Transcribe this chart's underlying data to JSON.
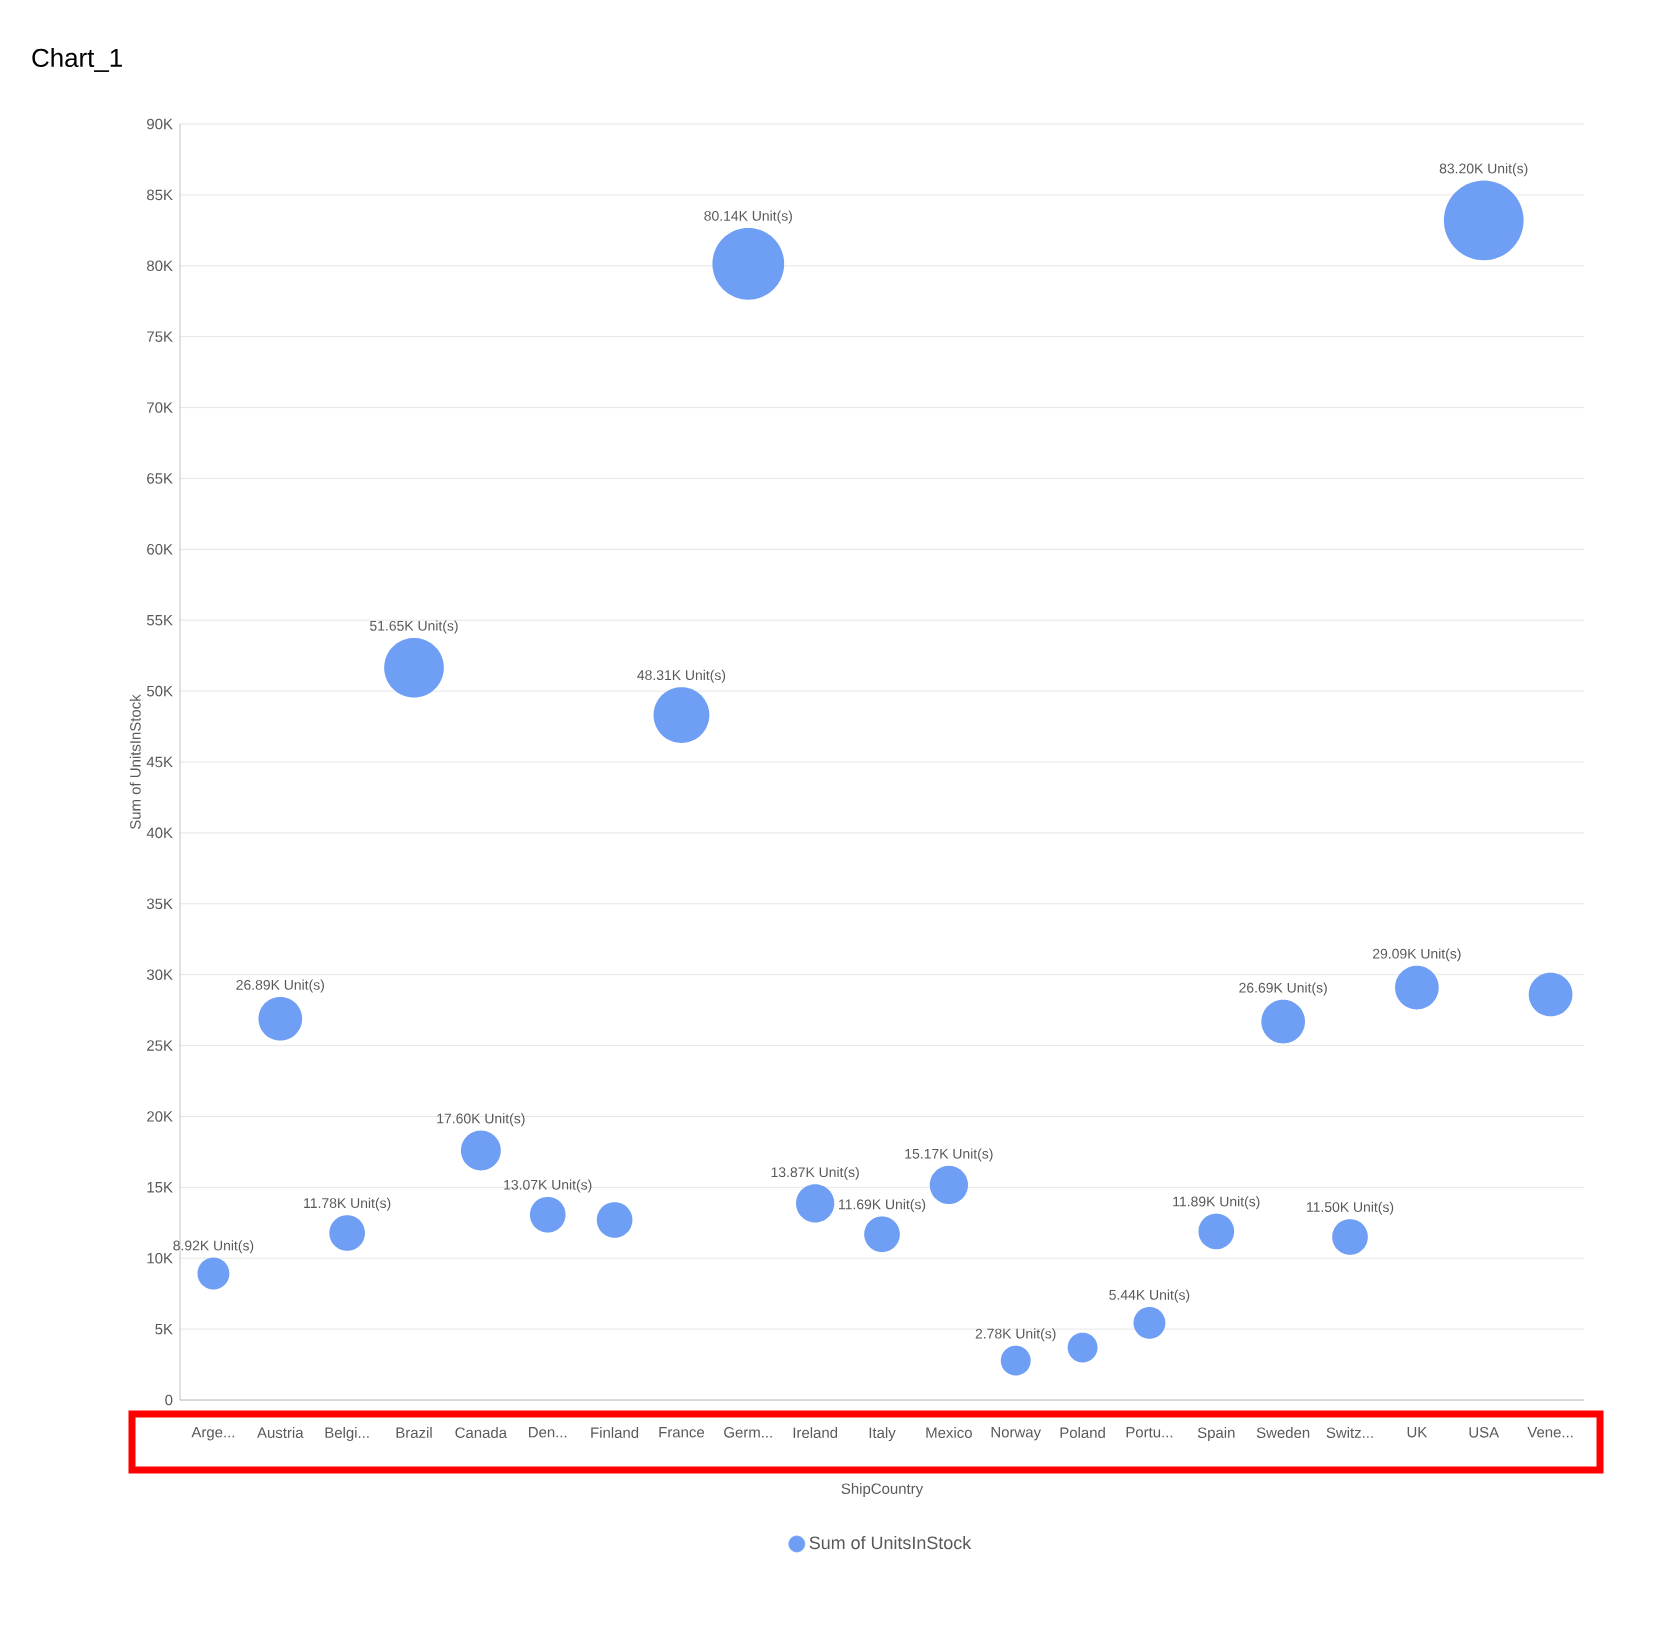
{
  "chart_data": {
    "type": "bubble",
    "title": "Chart_1",
    "xlabel": "ShipCountry",
    "ylabel": "Sum of UnitsInStock",
    "categories": [
      "Arge...",
      "Austria",
      "Belgi...",
      "Brazil",
      "Canada",
      "Den...",
      "Finland",
      "France",
      "Germ...",
      "Ireland",
      "Italy",
      "Mexico",
      "Norway",
      "Poland",
      "Portu...",
      "Spain",
      "Sweden",
      "Switz...",
      "UK",
      "USA",
      "Vene..."
    ],
    "series": [
      {
        "name": "Sum of UnitsInStock",
        "color": "#6f9ef5",
        "values": [
          8920,
          26890,
          11780,
          51650,
          17600,
          13070,
          12700,
          48310,
          80140,
          13870,
          11690,
          15170,
          2780,
          3700,
          5440,
          11890,
          26690,
          11500,
          29090,
          83200,
          28600
        ],
        "sizes": [
          0.16,
          0.3,
          0.2,
          0.56,
          0.25,
          0.2,
          0.2,
          0.49,
          0.81,
          0.23,
          0.2,
          0.23,
          0.14,
          0.14,
          0.16,
          0.2,
          0.3,
          0.2,
          0.3,
          1,
          0.3
        ],
        "value_labels": [
          "8.92K Unit(s)",
          "26.89K Unit(s)",
          "11.78K Unit(s)",
          "51.65K Unit(s)",
          "17.60K Unit(s)",
          "13.07K Unit(s)",
          null,
          "48.31K Unit(s)",
          "80.14K Unit(s)",
          "13.87K Unit(s)",
          "11.69K Unit(s)",
          "15.17K Unit(s)",
          "2.78K Unit(s)",
          null,
          "5.44K Unit(s)",
          "11.89K Unit(s)",
          "26.69K Unit(s)",
          "11.50K Unit(s)",
          "29.09K Unit(s)",
          "83.20K Unit(s)",
          null
        ]
      }
    ],
    "ylim": [
      0,
      90000
    ],
    "yticks": [
      0,
      {
        "value": 5000,
        "label": "5K"
      },
      {
        "value": 10000,
        "label": "10K"
      },
      {
        "value": 15000,
        "label": "15K"
      },
      {
        "value": 20000,
        "label": "20K"
      },
      {
        "value": 25000,
        "label": "25K"
      },
      {
        "value": 30000,
        "label": "30K"
      },
      {
        "value": 35000,
        "label": "35K"
      },
      {
        "value": 40000,
        "label": "40K"
      },
      {
        "value": 45000,
        "label": "45K"
      },
      {
        "value": 50000,
        "label": "50K"
      },
      {
        "value": 55000,
        "label": "55K"
      },
      {
        "value": 60000,
        "label": "60K"
      },
      {
        "value": 65000,
        "label": "65K"
      },
      {
        "value": 70000,
        "label": "70K"
      },
      {
        "value": 75000,
        "label": "75K"
      },
      {
        "value": 80000,
        "label": "80K"
      },
      {
        "value": 85000,
        "label": "85K"
      },
      {
        "value": 90000,
        "label": "90K"
      }
    ],
    "grid": "y",
    "legend": "bottom"
  }
}
